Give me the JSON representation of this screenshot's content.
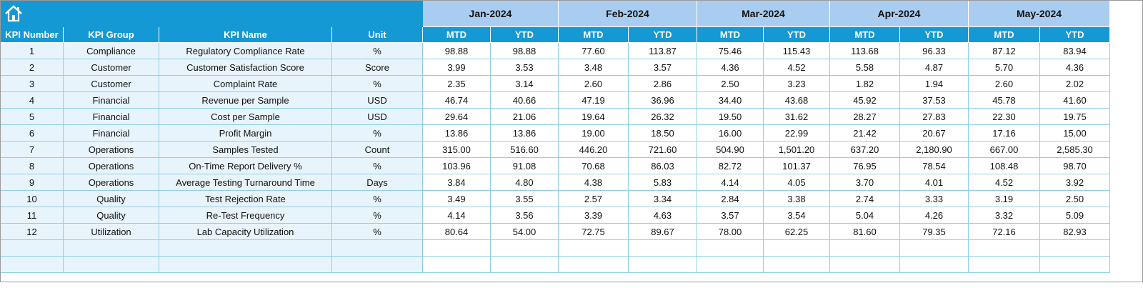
{
  "header": {
    "columns": [
      "KPI Number",
      "KPI Group",
      "KPI Name",
      "Unit"
    ],
    "months": [
      "Jan-2024",
      "Feb-2024",
      "Mar-2024",
      "Apr-2024",
      "May-2024"
    ],
    "subheaders": [
      "MTD",
      "YTD"
    ]
  },
  "rows": [
    {
      "number": 1,
      "group": "Compliance",
      "name": "Regulatory Compliance Rate",
      "unit": "%",
      "values": [
        "98.88",
        "98.88",
        "77.60",
        "113.87",
        "75.46",
        "115.43",
        "113.68",
        "96.33",
        "87.12",
        "83.94"
      ]
    },
    {
      "number": 2,
      "group": "Customer",
      "name": "Customer Satisfaction Score",
      "unit": "Score",
      "values": [
        "3.99",
        "3.53",
        "3.48",
        "3.57",
        "4.36",
        "4.52",
        "5.58",
        "4.87",
        "5.70",
        "4.36"
      ]
    },
    {
      "number": 3,
      "group": "Customer",
      "name": "Complaint Rate",
      "unit": "%",
      "values": [
        "2.35",
        "3.14",
        "2.60",
        "2.86",
        "2.50",
        "3.23",
        "1.82",
        "1.94",
        "2.60",
        "2.02"
      ]
    },
    {
      "number": 4,
      "group": "Financial",
      "name": "Revenue per Sample",
      "unit": "USD",
      "values": [
        "46.74",
        "40.66",
        "47.19",
        "36.96",
        "34.40",
        "43.68",
        "45.92",
        "37.53",
        "45.78",
        "41.60"
      ]
    },
    {
      "number": 5,
      "group": "Financial",
      "name": "Cost per Sample",
      "unit": "USD",
      "values": [
        "29.64",
        "21.06",
        "19.64",
        "26.32",
        "19.50",
        "31.62",
        "28.27",
        "27.83",
        "22.30",
        "19.75"
      ]
    },
    {
      "number": 6,
      "group": "Financial",
      "name": "Profit Margin",
      "unit": "%",
      "values": [
        "13.86",
        "13.86",
        "19.00",
        "18.50",
        "16.00",
        "22.99",
        "21.42",
        "20.67",
        "17.16",
        "15.00"
      ]
    },
    {
      "number": 7,
      "group": "Operations",
      "name": "Samples Tested",
      "unit": "Count",
      "values": [
        "315.00",
        "516.60",
        "446.20",
        "721.60",
        "504.90",
        "1,501.20",
        "637.20",
        "2,180.90",
        "667.00",
        "2,585.30"
      ]
    },
    {
      "number": 8,
      "group": "Operations",
      "name": "On-Time Report Delivery %",
      "unit": "%",
      "values": [
        "103.96",
        "91.08",
        "70.68",
        "86.03",
        "82.72",
        "101.37",
        "76.95",
        "78.54",
        "108.48",
        "98.70"
      ]
    },
    {
      "number": 9,
      "group": "Operations",
      "name": "Average Testing Turnaround Time",
      "unit": "Days",
      "values": [
        "3.84",
        "4.80",
        "4.38",
        "5.83",
        "4.14",
        "4.05",
        "3.70",
        "4.01",
        "4.52",
        "3.92"
      ]
    },
    {
      "number": 10,
      "group": "Quality",
      "name": "Test Rejection Rate",
      "unit": "%",
      "values": [
        "3.49",
        "3.55",
        "2.57",
        "3.34",
        "2.84",
        "3.38",
        "2.74",
        "3.33",
        "3.19",
        "2.50"
      ]
    },
    {
      "number": 11,
      "group": "Quality",
      "name": "Re-Test Frequency",
      "unit": "%",
      "values": [
        "4.14",
        "3.56",
        "3.39",
        "4.63",
        "3.57",
        "3.54",
        "5.04",
        "4.26",
        "3.32",
        "5.09"
      ]
    },
    {
      "number": 12,
      "group": "Utilization",
      "name": "Lab Capacity Utilization",
      "unit": "%",
      "values": [
        "80.64",
        "54.00",
        "72.75",
        "89.67",
        "78.00",
        "62.25",
        "81.60",
        "79.35",
        "72.16",
        "82.93"
      ]
    }
  ]
}
